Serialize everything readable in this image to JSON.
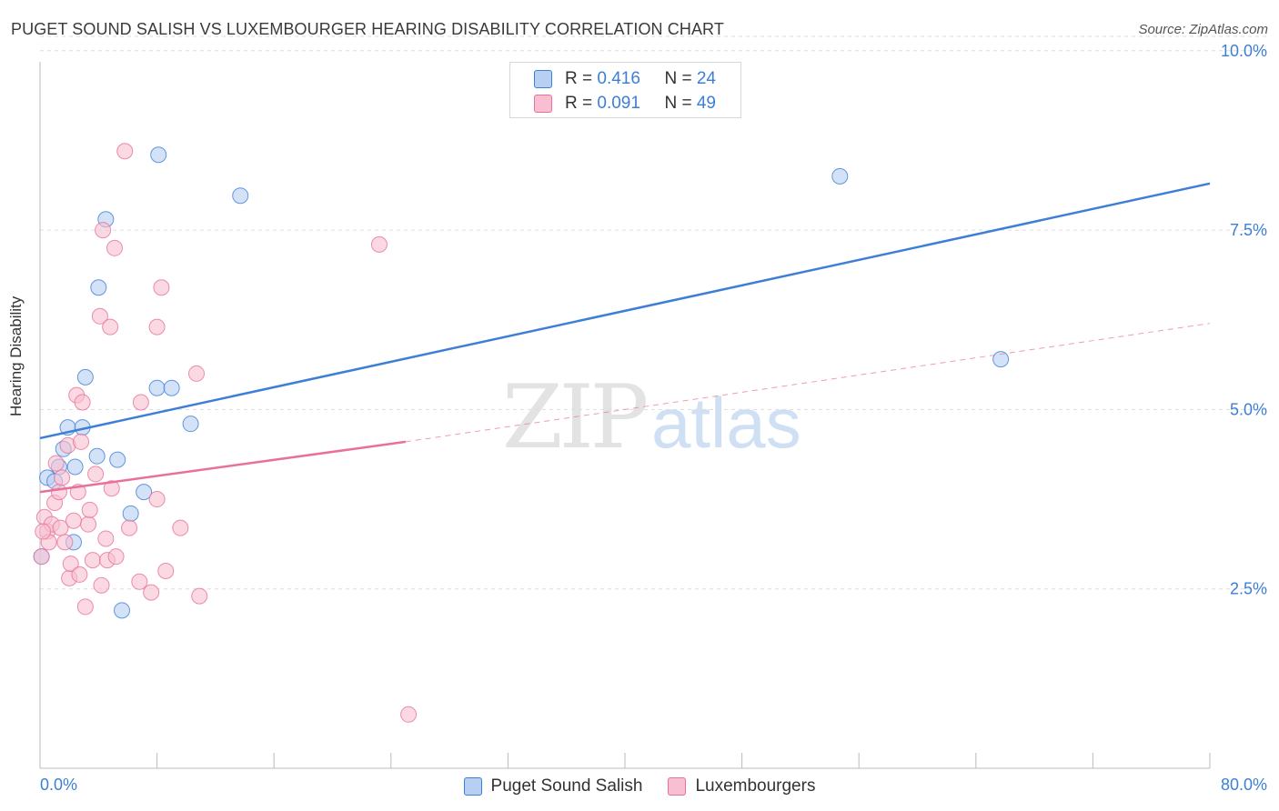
{
  "title": "PUGET SOUND SALISH VS LUXEMBOURGER HEARING DISABILITY CORRELATION CHART",
  "source": "Source: ZipAtlas.com",
  "colors": {
    "blue": "#3d7fd6",
    "blue_fill": "#b7cff2",
    "pink": "#e8709a",
    "pink_fill": "#f7bfd1",
    "grid": "#dddddd",
    "tick_label": "#3d7fd6"
  },
  "stats": {
    "blue": {
      "r_label": "R = ",
      "r_value": "0.416",
      "n_label": "N = ",
      "n_value": "24"
    },
    "pink": {
      "r_label": "R = ",
      "r_value": "0.091",
      "n_label": "N = ",
      "n_value": "49"
    }
  },
  "chart_data": {
    "type": "scatter",
    "title": "PUGET SOUND SALISH VS LUXEMBOURGER HEARING DISABILITY CORRELATION CHART",
    "xlabel": "",
    "ylabel": "Hearing Disability",
    "xlim": [
      0,
      80
    ],
    "ylim": [
      0,
      10.2
    ],
    "x_tick_labels": [
      "0.0%",
      "80.0%"
    ],
    "y_ticks": [
      2.5,
      5.0,
      7.5,
      10.0
    ],
    "y_tick_labels": [
      "2.5%",
      "5.0%",
      "7.5%",
      "10.0%"
    ],
    "grid": "horizontal dashed",
    "legend_position": "bottom-center",
    "watermark": {
      "zip": "ZIP",
      "atlas": "atlas"
    },
    "series": [
      {
        "name": "Puget Sound Salish",
        "color": "#3d7fd6",
        "points": [
          [
            0.5,
            4.05
          ],
          [
            1.0,
            4.0
          ],
          [
            1.3,
            4.2
          ],
          [
            1.6,
            4.45
          ],
          [
            1.9,
            4.75
          ],
          [
            2.3,
            3.15
          ],
          [
            2.4,
            4.2
          ],
          [
            2.9,
            4.75
          ],
          [
            3.1,
            5.45
          ],
          [
            3.9,
            4.35
          ],
          [
            4.0,
            6.7
          ],
          [
            4.5,
            7.65
          ],
          [
            5.3,
            4.3
          ],
          [
            5.6,
            2.2
          ],
          [
            6.2,
            3.55
          ],
          [
            7.1,
            3.85
          ],
          [
            8.0,
            5.3
          ],
          [
            8.1,
            8.55
          ],
          [
            9.0,
            5.3
          ],
          [
            10.3,
            4.8
          ],
          [
            13.7,
            7.98
          ],
          [
            54.7,
            8.25
          ],
          [
            65.7,
            5.7
          ],
          [
            0.1,
            2.95
          ]
        ],
        "trend": {
          "x": [
            0,
            80
          ],
          "y": [
            4.6,
            8.15
          ],
          "style": "solid"
        }
      },
      {
        "name": "Luxembourgers",
        "color": "#e8709a",
        "points": [
          [
            0.1,
            2.95
          ],
          [
            0.3,
            3.5
          ],
          [
            0.5,
            3.3
          ],
          [
            0.6,
            3.15
          ],
          [
            0.8,
            3.4
          ],
          [
            1.0,
            3.7
          ],
          [
            1.1,
            4.25
          ],
          [
            1.3,
            3.85
          ],
          [
            1.4,
            3.35
          ],
          [
            1.5,
            4.05
          ],
          [
            1.7,
            3.15
          ],
          [
            1.9,
            4.5
          ],
          [
            2.0,
            2.65
          ],
          [
            2.1,
            2.85
          ],
          [
            2.3,
            3.45
          ],
          [
            2.5,
            5.2
          ],
          [
            2.6,
            3.85
          ],
          [
            2.7,
            2.7
          ],
          [
            2.8,
            4.55
          ],
          [
            2.9,
            5.1
          ],
          [
            3.1,
            2.25
          ],
          [
            3.3,
            3.4
          ],
          [
            3.4,
            3.6
          ],
          [
            3.6,
            2.9
          ],
          [
            3.8,
            4.1
          ],
          [
            4.1,
            6.3
          ],
          [
            4.2,
            2.55
          ],
          [
            4.3,
            7.5
          ],
          [
            4.5,
            3.2
          ],
          [
            4.6,
            2.9
          ],
          [
            4.8,
            6.15
          ],
          [
            4.9,
            3.9
          ],
          [
            5.1,
            7.25
          ],
          [
            5.2,
            2.95
          ],
          [
            5.8,
            8.6
          ],
          [
            6.1,
            3.35
          ],
          [
            6.8,
            2.6
          ],
          [
            6.9,
            5.1
          ],
          [
            7.6,
            2.45
          ],
          [
            8.0,
            3.75
          ],
          [
            8.0,
            6.15
          ],
          [
            8.3,
            6.7
          ],
          [
            8.6,
            2.75
          ],
          [
            9.6,
            3.35
          ],
          [
            10.7,
            5.5
          ],
          [
            10.9,
            2.4
          ],
          [
            23.2,
            7.3
          ],
          [
            25.2,
            0.75
          ],
          [
            0.2,
            3.3
          ]
        ],
        "trend": {
          "x": [
            0,
            25
          ],
          "y": [
            3.85,
            4.55
          ],
          "style": "solid",
          "extension": {
            "x": [
              25,
              80
            ],
            "y": [
              4.55,
              6.2
            ],
            "style": "dashed"
          }
        }
      }
    ]
  }
}
